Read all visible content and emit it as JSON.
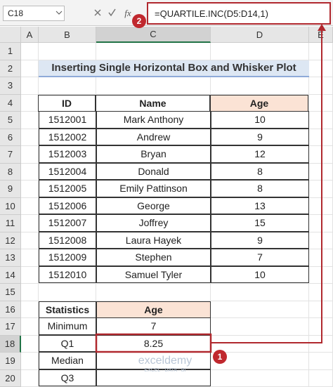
{
  "formula_bar": {
    "name_box": "C18",
    "function_icon": "fx",
    "formula": "=QUARTILE.INC(D5:D14,1)"
  },
  "column_headers": [
    "A",
    "B",
    "C",
    "D",
    "E"
  ],
  "row_headers": [
    "1",
    "2",
    "3",
    "4",
    "5",
    "6",
    "7",
    "8",
    "9",
    "10",
    "11",
    "12",
    "13",
    "14",
    "15",
    "16",
    "17",
    "18",
    "19",
    "20"
  ],
  "title": "Inserting Single Horizontal Box and Whisker Plot",
  "table": {
    "header": [
      "ID",
      "Name",
      "Age"
    ],
    "rows": [
      [
        "1512001",
        "Mark Anthony",
        "10"
      ],
      [
        "1512002",
        "Andrew",
        "9"
      ],
      [
        "1512003",
        "Bryan",
        "12"
      ],
      [
        "1512004",
        "Donald",
        "8"
      ],
      [
        "1512005",
        "Emily Pattinson",
        "8"
      ],
      [
        "1512006",
        "George",
        "13"
      ],
      [
        "1512007",
        "Joffrey",
        "15"
      ],
      [
        "1512008",
        "Laura Hayek",
        "9"
      ],
      [
        "1512009",
        "Stephen",
        "7"
      ],
      [
        "1512010",
        "Samuel Tyler",
        "10"
      ]
    ]
  },
  "stats_table": {
    "header": [
      "Statistics",
      "Age"
    ],
    "rows": [
      [
        "Minimum",
        "7"
      ],
      [
        "Q1",
        "8.25"
      ],
      [
        "Median"
      ],
      [
        "Q3"
      ]
    ]
  },
  "callouts": [
    "1",
    "2"
  ],
  "watermark": {
    "name": "exceldemy",
    "tagline": "EXCEL · DATA · BI"
  }
}
